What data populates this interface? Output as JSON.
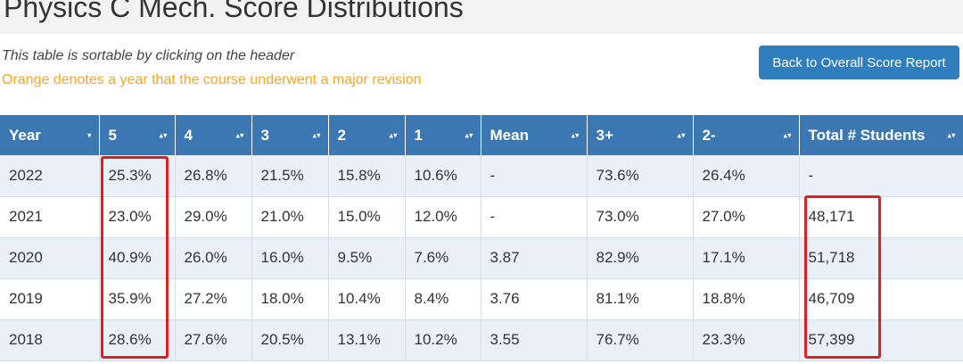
{
  "page": {
    "title": "Physics C Mech. Score Distributions",
    "note_sortable": "This table is sortable by clicking on the header",
    "note_revision": "Orange denotes a year that the course underwent a major revision",
    "back_button": "Back to Overall Score Report"
  },
  "colors": {
    "header_bg": "#3b78b3",
    "button_bg": "#2f7ebd",
    "revision_note": "#f5a623",
    "highlight": "#e02020",
    "row_alt": "#e9f0f8"
  },
  "table": {
    "headers": [
      {
        "label": "Year",
        "sort_icon": "▾"
      },
      {
        "label": "5",
        "sort_icon": "▴▾"
      },
      {
        "label": "4",
        "sort_icon": "▴▾"
      },
      {
        "label": "3",
        "sort_icon": "▴▾"
      },
      {
        "label": "2",
        "sort_icon": "▴▾"
      },
      {
        "label": "1",
        "sort_icon": "▴▾"
      },
      {
        "label": "Mean",
        "sort_icon": "▴▾"
      },
      {
        "label": "3+",
        "sort_icon": "▴▾"
      },
      {
        "label": "2-",
        "sort_icon": "▴▾"
      },
      {
        "label": "Total # Students",
        "sort_icon": "▴▾"
      }
    ],
    "rows": [
      [
        "2022",
        "25.3%",
        "26.8%",
        "21.5%",
        "15.8%",
        "10.6%",
        "-",
        "73.6%",
        "26.4%",
        "-"
      ],
      [
        "2021",
        "23.0%",
        "29.0%",
        "21.0%",
        "15.0%",
        "12.0%",
        "-",
        "73.0%",
        "27.0%",
        "48,171"
      ],
      [
        "2020",
        "40.9%",
        "26.0%",
        "16.0%",
        "9.5%",
        "7.6%",
        "3.87",
        "82.9%",
        "17.1%",
        "51,718"
      ],
      [
        "2019",
        "35.9%",
        "27.2%",
        "18.0%",
        "10.4%",
        "8.4%",
        "3.76",
        "81.1%",
        "18.8%",
        "46,709"
      ],
      [
        "2018",
        "28.6%",
        "27.6%",
        "20.5%",
        "13.1%",
        "10.2%",
        "3.55",
        "76.7%",
        "23.3%",
        "57,399"
      ]
    ]
  }
}
